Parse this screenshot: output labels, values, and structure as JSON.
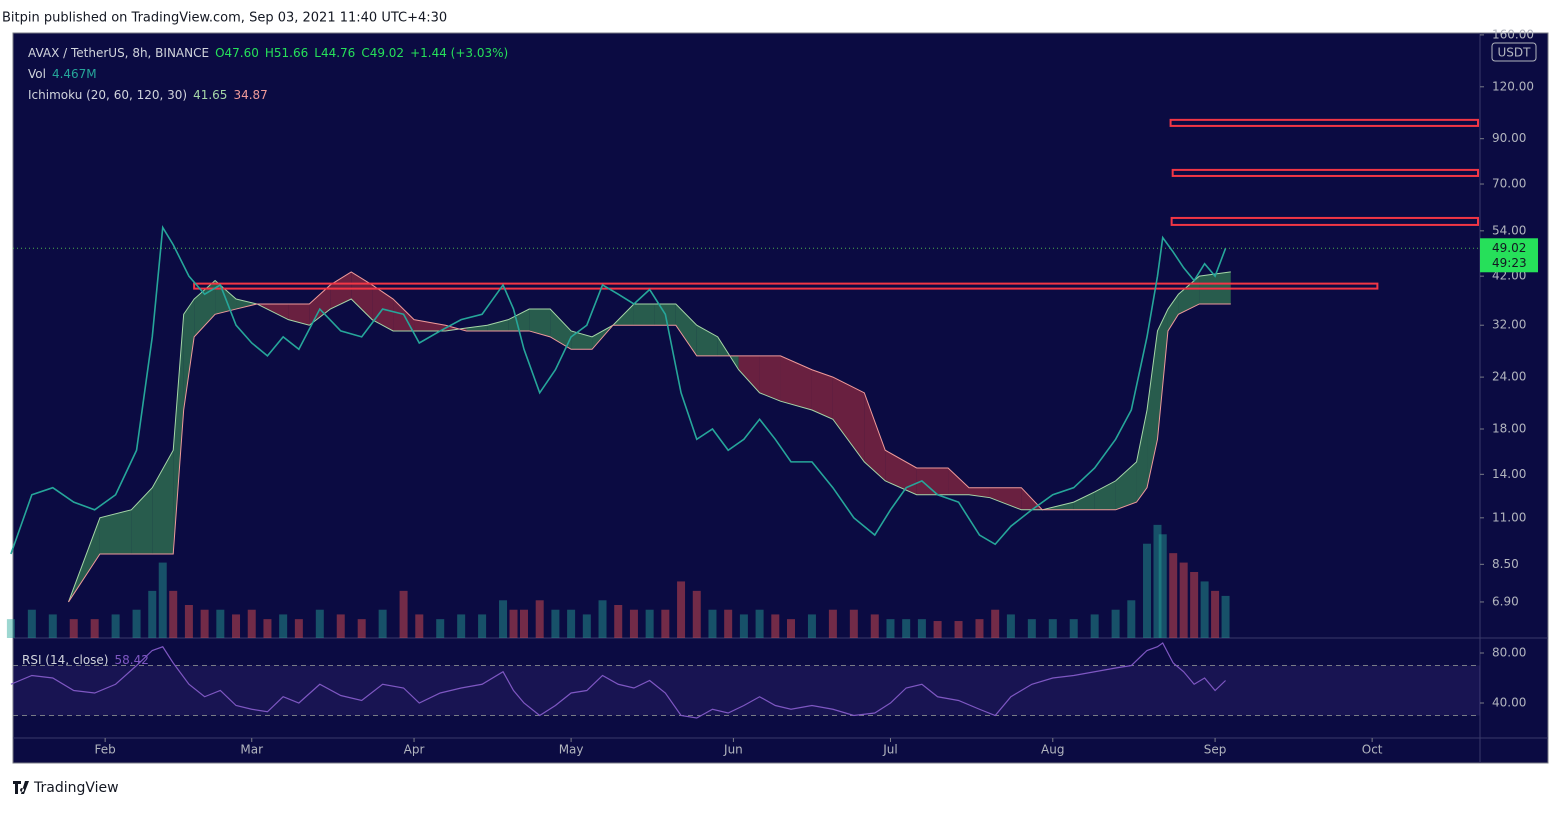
{
  "header": {
    "publisher": "Bitpin published on TradingView.com, Sep 03, 2021 11:40 UTC+4:30"
  },
  "footer": {
    "brand": "TradingView"
  },
  "chart_data": {
    "type": "line",
    "log_scale": true,
    "legend": {
      "symbol": "AVAX / TetherUS, 8h, BINANCE",
      "open": "O47.60",
      "high": "H51.66",
      "low": "L44.76",
      "close": "C49.02",
      "change": "+1.44 (+3.03%)",
      "vol_name": "Vol",
      "vol_value": "4.467M",
      "ichimoku_name": "Ichimoku (20, 60, 120, 30)",
      "ichimoku_a": "41.65",
      "ichimoku_b": "34.87"
    },
    "currency": "USDT",
    "last_price": {
      "value": 49.02,
      "label": "49.02",
      "countdown": "49:23"
    },
    "xlim": [
      13.4,
      293.6
    ],
    "xticks": [
      {
        "value": 31,
        "label": "Feb"
      },
      {
        "value": 59,
        "label": "Mar"
      },
      {
        "value": 90,
        "label": "Apr"
      },
      {
        "value": 120,
        "label": "May"
      },
      {
        "value": 151,
        "label": "Jun"
      },
      {
        "value": 181,
        "label": "Jul"
      },
      {
        "value": 212,
        "label": "Aug"
      },
      {
        "value": 243,
        "label": "Sep"
      },
      {
        "value": 273,
        "label": "Oct"
      }
    ],
    "ylim": [
      5.65,
      161.7
    ],
    "yticks": [
      {
        "value": 160,
        "label": "160.00"
      },
      {
        "value": 120,
        "label": "120.00"
      },
      {
        "value": 90,
        "label": "90.00"
      },
      {
        "value": 70,
        "label": "70.00"
      },
      {
        "value": 54,
        "label": "54.00"
      },
      {
        "value": 42,
        "label": "42.00"
      },
      {
        "value": 32,
        "label": "32.00"
      },
      {
        "value": 24,
        "label": "24.00"
      },
      {
        "value": 18,
        "label": "18.00"
      },
      {
        "value": 14,
        "label": "14.00"
      },
      {
        "value": 11,
        "label": "11.00"
      },
      {
        "value": 8.5,
        "label": "8.50"
      },
      {
        "value": 6.9,
        "label": "6.90"
      }
    ],
    "x": [
      13,
      17,
      21,
      25,
      29,
      33,
      37,
      40,
      42,
      44,
      47,
      50,
      53,
      56,
      59,
      62,
      65,
      68,
      72,
      76,
      80,
      84,
      88,
      91,
      95,
      99,
      103,
      107,
      109,
      111,
      114,
      117,
      120,
      123,
      126,
      129,
      132,
      135,
      138,
      141,
      144,
      147,
      150,
      153,
      156,
      159,
      162,
      166,
      170,
      174,
      178,
      181,
      184,
      187,
      190,
      194,
      198,
      201,
      204,
      208,
      212,
      216,
      220,
      224,
      227,
      230,
      232,
      233,
      235,
      237,
      239,
      241,
      243,
      245
    ],
    "price": {
      "color": "#26a69a",
      "values": [
        9,
        12.5,
        13,
        12,
        11.5,
        12.5,
        16,
        30,
        55,
        50,
        42,
        38,
        40,
        32,
        29,
        27,
        30,
        28,
        35,
        31,
        30,
        35,
        34,
        29,
        31,
        33,
        34,
        40,
        35,
        28,
        22,
        25,
        30,
        32,
        40,
        38,
        36,
        39,
        34,
        22,
        17,
        18,
        16,
        17,
        19,
        17,
        15,
        15,
        13,
        11,
        10,
        11.5,
        13,
        13.5,
        12.5,
        12,
        10,
        9.5,
        10.5,
        11.5,
        12.5,
        13,
        14.5,
        17,
        20,
        30,
        42,
        52,
        48,
        44,
        41,
        45,
        42,
        49.02
      ]
    },
    "volume": {
      "color": "#26a69a",
      "lim": [
        0,
        14
      ],
      "values": [
        2,
        3,
        2.5,
        2,
        2,
        2.5,
        3,
        5,
        8,
        5,
        3.5,
        3,
        3,
        2.5,
        3,
        2,
        2.5,
        2,
        3,
        2.5,
        2,
        3,
        5,
        2.5,
        2,
        2.5,
        2.5,
        4,
        3,
        3,
        4,
        3,
        3,
        2.5,
        4,
        3.5,
        3,
        3,
        3,
        6,
        5,
        3,
        3,
        2.5,
        3,
        2.5,
        2,
        2.5,
        3,
        3,
        2.5,
        2,
        2,
        2,
        1.8,
        1.8,
        2,
        3,
        2.5,
        2,
        2,
        2,
        2.5,
        3,
        4,
        10,
        12,
        11,
        9,
        8,
        7,
        6,
        5,
        4.467
      ]
    },
    "cloud": {
      "up_color": "#2e6b4f",
      "down_color": "#7a2440",
      "line_a": "#a5d6a7",
      "line_b": "#ef9a9a",
      "x": [
        24,
        30,
        36,
        40,
        44,
        46,
        48,
        52,
        56,
        60,
        66,
        70,
        74,
        78,
        82,
        86,
        90,
        96,
        100,
        104,
        108,
        112,
        116,
        120,
        124,
        128,
        132,
        136,
        140,
        144,
        148,
        152,
        156,
        160,
        166,
        170,
        176,
        180,
        186,
        192,
        196,
        200,
        206,
        210,
        216,
        220,
        224,
        228,
        230,
        232,
        234,
        236,
        240,
        246
      ],
      "span_a": [
        6.9,
        11,
        11.5,
        13,
        16,
        34,
        37,
        41,
        37,
        36,
        33,
        32,
        35,
        37,
        33,
        31,
        31,
        31,
        31.5,
        32,
        33,
        35,
        35,
        31,
        30,
        32,
        36,
        36,
        36,
        32,
        30,
        25,
        22,
        21,
        20,
        19,
        15,
        13.5,
        12.5,
        12.5,
        12.5,
        12.3,
        11.5,
        11.5,
        12,
        12.7,
        13.5,
        15,
        20,
        31,
        35,
        38,
        42,
        43
      ],
      "span_b": [
        6.9,
        9,
        9,
        9,
        9,
        20,
        30,
        34,
        35,
        36,
        36,
        36,
        40,
        43,
        40,
        37,
        33,
        32,
        31,
        31,
        31,
        31,
        30,
        28,
        28,
        32,
        32,
        32,
        32,
        27,
        27,
        27,
        27,
        27,
        25,
        24,
        22,
        16,
        14.5,
        14.5,
        13,
        13,
        13,
        11.5,
        11.5,
        11.5,
        11.5,
        12,
        13,
        17,
        31,
        34,
        36,
        36
      ]
    },
    "zones": {
      "color": "#f23645",
      "items": [
        {
          "start": 48,
          "end": 274,
          "lo": 39.2,
          "hi": 40.3
        },
        {
          "start": 234.7,
          "end": 293.6,
          "lo": 55.8,
          "hi": 58
        },
        {
          "start": 234.9,
          "end": 293.6,
          "lo": 73.2,
          "hi": 75.7
        },
        {
          "start": 234.5,
          "end": 293.6,
          "lo": 96.6,
          "hi": 99.9
        }
      ]
    },
    "rsi": {
      "name": "RSI (14, close)",
      "value_label": "58.42",
      "color": "#7e57c2",
      "ylim": [
        12,
        92
      ],
      "band": [
        30,
        70
      ],
      "yticks": [
        {
          "value": 80,
          "label": "80.00"
        },
        {
          "value": 40,
          "label": "40.00"
        }
      ],
      "values": [
        55,
        62,
        60,
        50,
        48,
        55,
        70,
        82,
        85,
        72,
        55,
        45,
        50,
        38,
        35,
        33,
        45,
        40,
        55,
        46,
        42,
        55,
        52,
        40,
        48,
        52,
        55,
        65,
        50,
        40,
        30,
        38,
        48,
        50,
        62,
        55,
        52,
        58,
        48,
        30,
        28,
        35,
        32,
        38,
        45,
        38,
        35,
        38,
        35,
        30,
        32,
        40,
        52,
        55,
        45,
        42,
        35,
        30,
        45,
        55,
        60,
        62,
        65,
        68,
        70,
        82,
        85,
        88,
        72,
        65,
        55,
        60,
        50,
        58
      ]
    }
  }
}
